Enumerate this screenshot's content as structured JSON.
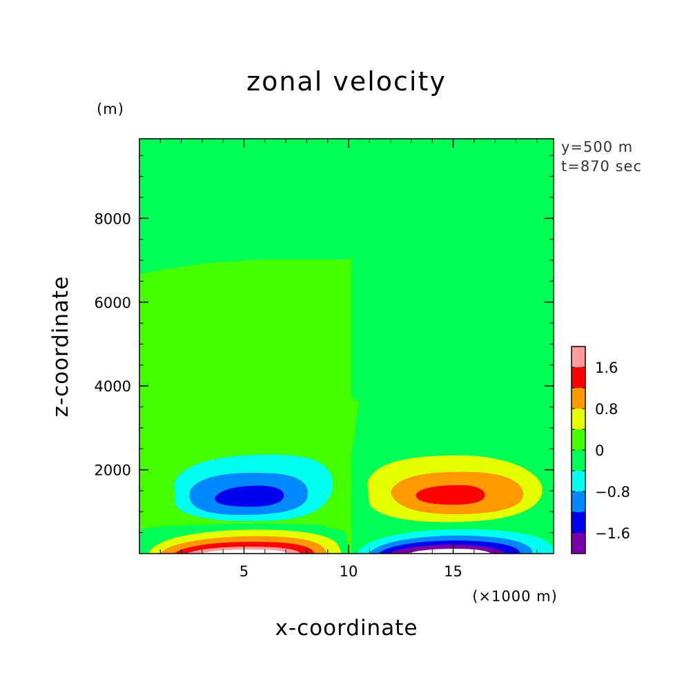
{
  "chart_data": {
    "type": "contour",
    "title": "zonal velocity",
    "xlabel": "x-coordinate",
    "ylabel": "z-coordinate",
    "x_unit": "(×1000 m)",
    "y_unit": "(m)",
    "xlim": [
      0,
      19.8
    ],
    "ylim": [
      0,
      9900
    ],
    "x_ticks": [
      5,
      10,
      15
    ],
    "y_ticks": [
      2000,
      4000,
      6000,
      8000
    ],
    "annotations": [
      "y=500 m",
      "t=870 sec"
    ],
    "colorbar": {
      "tick_labels": [
        "1.6",
        "0.8",
        "0",
        "-0.8",
        "-1.6"
      ],
      "tick_values": [
        1.6,
        0.8,
        0,
        -0.8,
        -1.6
      ],
      "levels": [
        {
          "min": 1.6,
          "color": "#ff9b9b"
        },
        {
          "min": 1.2,
          "max": 1.6,
          "color": "#ff0000"
        },
        {
          "min": 0.8,
          "max": 1.2,
          "color": "#ff9900"
        },
        {
          "min": 0.4,
          "max": 0.8,
          "color": "#e6ff00"
        },
        {
          "min": 0.0,
          "max": 0.4,
          "color": "#44ff00"
        },
        {
          "min": -0.4,
          "max": 0.0,
          "color": "#00ff55"
        },
        {
          "min": -0.8,
          "max": -0.4,
          "color": "#00ffee"
        },
        {
          "min": -1.2,
          "max": -0.8,
          "color": "#0088ff"
        },
        {
          "min": -1.6,
          "max": -1.2,
          "color": "#0000ee"
        },
        {
          "max": -1.6,
          "color": "#7700aa"
        }
      ]
    }
  }
}
